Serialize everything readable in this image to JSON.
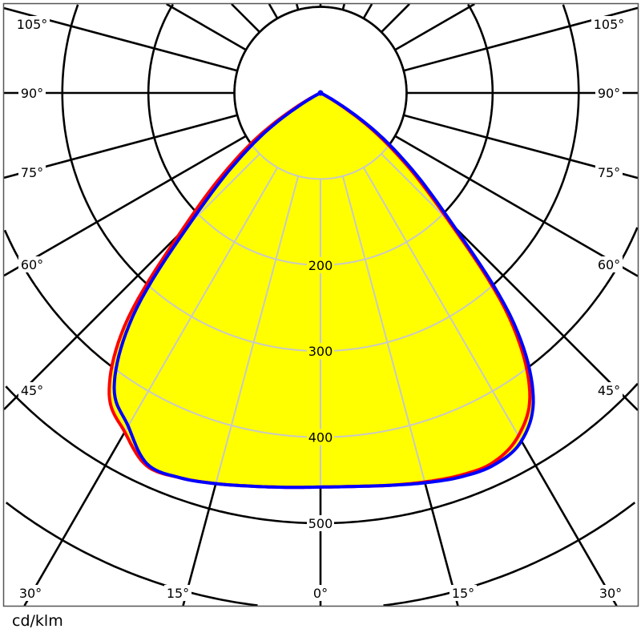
{
  "chart_data": {
    "type": "polar",
    "unit_label": "cd/klm",
    "radial_circles": [
      100,
      200,
      300,
      400,
      500,
      600,
      700
    ],
    "radial_tick_labels": [
      {
        "value": 200,
        "text": "200"
      },
      {
        "value": 300,
        "text": "300"
      },
      {
        "value": 400,
        "text": "400"
      },
      {
        "value": 500,
        "text": "500"
      }
    ],
    "angle_step": 15,
    "angle_labels_left": [
      {
        "angle": 105,
        "text": "105°"
      },
      {
        "angle": 90,
        "text": "90°"
      },
      {
        "angle": 75,
        "text": "75°"
      },
      {
        "angle": 60,
        "text": "60°"
      },
      {
        "angle": 45,
        "text": "45°"
      },
      {
        "angle": 30,
        "text": "30°"
      },
      {
        "angle": 15,
        "text": "15°"
      }
    ],
    "angle_label_center": {
      "angle": 0,
      "text": "0°"
    },
    "angle_labels_right": [
      {
        "angle": 105,
        "text": "105°"
      },
      {
        "angle": 90,
        "text": "90°"
      },
      {
        "angle": 75,
        "text": "75°"
      },
      {
        "angle": 60,
        "text": "60°"
      },
      {
        "angle": 45,
        "text": "45°"
      },
      {
        "angle": 30,
        "text": "30°"
      },
      {
        "angle": 15,
        "text": "15°"
      }
    ],
    "fill_color": "#ffff00",
    "grid_color_outside": "#000000",
    "grid_color_inside": "#c8c8c8",
    "angles": [
      -90,
      -85,
      -80,
      -75,
      -70,
      -65,
      -60,
      -55,
      -50,
      -45,
      -40,
      -35,
      -30,
      -25,
      -20,
      -15,
      -10,
      -5,
      0,
      5,
      10,
      15,
      20,
      25,
      30,
      35,
      40,
      45,
      50,
      55,
      60,
      65,
      70,
      75,
      80,
      85,
      90
    ],
    "series": [
      {
        "color": "#ff0000",
        "values": [
          0,
          0,
          0,
          0,
          0,
          0,
          30,
          88,
          150,
          232,
          355,
          428,
          455,
          478,
          476,
          470,
          464,
          460,
          458,
          459,
          463,
          468,
          473,
          474,
          460,
          424,
          342,
          212,
          132,
          70,
          16,
          0,
          0,
          0,
          0,
          0,
          0
        ]
      },
      {
        "color": "#0000ff",
        "values": [
          0,
          0,
          0,
          0,
          0,
          0,
          20,
          75,
          135,
          215,
          340,
          418,
          447,
          476,
          476,
          470,
          464,
          460,
          458,
          459,
          463,
          469,
          475,
          477,
          467,
          431,
          350,
          220,
          140,
          78,
          22,
          0,
          0,
          0,
          0,
          0,
          0
        ]
      }
    ]
  }
}
